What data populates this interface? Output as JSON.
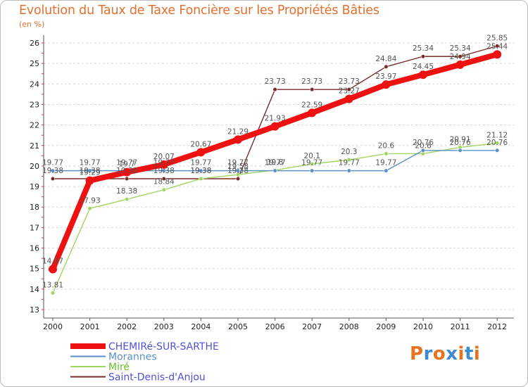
{
  "header": {
    "title": "Evolution du Taux de Taxe Foncière sur les Propriétés Bâties",
    "unit": "(en %)"
  },
  "brand": {
    "logo_text": "Proxiti"
  },
  "chart_data": {
    "type": "line",
    "title": "Evolution du Taux de Taxe Foncière sur les Propriétés Bâties",
    "ylabel": "(en %)",
    "xlabel": "",
    "ylim": [
      13,
      26
    ],
    "yticks": [
      13,
      14,
      15,
      16,
      17,
      18,
      19,
      20,
      21,
      22,
      23,
      24,
      25,
      26
    ],
    "x": [
      "2000",
      "2001",
      "2002",
      "2003",
      "2004",
      "2005",
      "2006",
      "2007",
      "2008",
      "2009",
      "2010",
      "2011",
      "2012"
    ],
    "grid": "horizontal dashed",
    "legend": "bottom-left",
    "series": [
      {
        "name": "CHEMIRé-SUR-SARTHE",
        "color": "#ee1111",
        "values": [
          14.97,
          19.29,
          19.7,
          20.07,
          20.67,
          21.29,
          21.93,
          22.59,
          23.27,
          23.97,
          24.45,
          24.94,
          25.44
        ],
        "labels": [
          "14.97",
          "19.29",
          "19.7",
          "20.07",
          "20.67",
          "21.29",
          "21.93",
          "22.59",
          "23.27",
          "23.97",
          "24.45",
          "24.94",
          "25.44"
        ]
      },
      {
        "name": "Morannes",
        "color": "#5a8fc7",
        "values": [
          19.77,
          19.77,
          19.77,
          19.77,
          19.77,
          19.77,
          19.77,
          19.77,
          19.77,
          19.77,
          20.76,
          20.76,
          20.76
        ],
        "labels": [
          "19.77",
          "19.77",
          "19.77",
          "19.77",
          "19.77",
          "19.77",
          "19.77",
          "19.77",
          "19.77",
          "19.77",
          "20.76",
          "20.76",
          "20.76"
        ]
      },
      {
        "name": "Miré",
        "color": "#9fd65f",
        "values": [
          13.81,
          17.93,
          18.38,
          18.84,
          19.38,
          19.58,
          19.8,
          20.1,
          20.3,
          20.6,
          20.6,
          20.91,
          21.12
        ],
        "labels": [
          "13.81",
          "17.93",
          "18.38",
          "18.84",
          "19.38",
          "19.58",
          "19.8",
          "20.1",
          "20.3",
          "20.6",
          "20.6",
          "20.91",
          "21.12"
        ]
      },
      {
        "name": "Saint-Denis-d'Anjou",
        "color": "#7a2a2a",
        "values": [
          19.38,
          19.38,
          19.38,
          19.38,
          19.38,
          19.38,
          23.73,
          23.73,
          23.73,
          24.84,
          25.34,
          25.34,
          25.85
        ],
        "labels": [
          "19.38",
          "19.38",
          "19.38",
          "19.38",
          "19.38",
          "19.38",
          "23.73",
          "23.73",
          "23.73",
          "24.84",
          "25.34",
          "25.34",
          "25.85"
        ]
      }
    ]
  }
}
